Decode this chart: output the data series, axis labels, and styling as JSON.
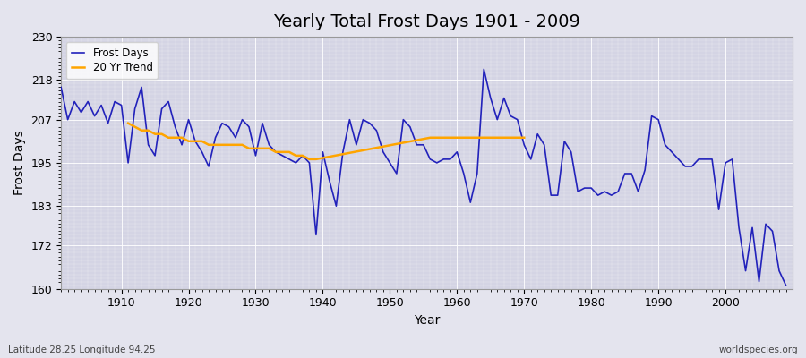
{
  "title": "Yearly Total Frost Days 1901 - 2009",
  "xlabel": "Year",
  "ylabel": "Frost Days",
  "lat_lon_label": "Latitude 28.25 Longitude 94.25",
  "watermark": "worldspecies.org",
  "ylim": [
    160,
    230
  ],
  "yticks": [
    160,
    172,
    183,
    195,
    207,
    218,
    230
  ],
  "xlim": [
    1901,
    2010
  ],
  "frost_days_color": "#2222bb",
  "trend_color": "#FFA500",
  "bg_color": "#e4e4ee",
  "plot_bg_color": "#d4d4e4",
  "years": [
    1901,
    1902,
    1903,
    1904,
    1905,
    1906,
    1907,
    1908,
    1909,
    1910,
    1911,
    1912,
    1913,
    1914,
    1915,
    1916,
    1917,
    1918,
    1919,
    1920,
    1921,
    1922,
    1923,
    1924,
    1925,
    1926,
    1927,
    1928,
    1929,
    1930,
    1931,
    1932,
    1933,
    1934,
    1935,
    1936,
    1937,
    1938,
    1939,
    1940,
    1941,
    1942,
    1943,
    1944,
    1945,
    1946,
    1947,
    1948,
    1949,
    1950,
    1951,
    1952,
    1953,
    1954,
    1955,
    1956,
    1957,
    1958,
    1959,
    1960,
    1961,
    1962,
    1963,
    1964,
    1965,
    1966,
    1967,
    1968,
    1969,
    1970,
    1971,
    1972,
    1973,
    1974,
    1975,
    1976,
    1977,
    1978,
    1979,
    1980,
    1981,
    1982,
    1983,
    1984,
    1985,
    1986,
    1987,
    1988,
    1989,
    1990,
    1991,
    1992,
    1993,
    1994,
    1995,
    1996,
    1997,
    1998,
    1999,
    2000,
    2001,
    2002,
    2003,
    2004,
    2005,
    2006,
    2007,
    2008,
    2009
  ],
  "frost_values": [
    216,
    207,
    212,
    209,
    212,
    208,
    211,
    206,
    212,
    211,
    195,
    210,
    216,
    200,
    197,
    210,
    212,
    205,
    200,
    207,
    201,
    198,
    194,
    202,
    206,
    205,
    202,
    207,
    205,
    197,
    206,
    200,
    198,
    197,
    196,
    195,
    197,
    195,
    175,
    198,
    190,
    183,
    198,
    207,
    200,
    207,
    206,
    204,
    198,
    195,
    192,
    207,
    205,
    200,
    200,
    196,
    195,
    196,
    196,
    198,
    192,
    184,
    192,
    221,
    213,
    207,
    213,
    208,
    207,
    200,
    196,
    203,
    200,
    186,
    186,
    201,
    198,
    187,
    188,
    188,
    186,
    187,
    186,
    187,
    192,
    192,
    187,
    193,
    208,
    207,
    200,
    198,
    196,
    194,
    194,
    196,
    196,
    196,
    182,
    195,
    196,
    177,
    165,
    177,
    162,
    178,
    176,
    165,
    161
  ],
  "trend_years": [
    1911,
    1912,
    1913,
    1914,
    1915,
    1916,
    1917,
    1918,
    1919,
    1920,
    1921,
    1922,
    1923,
    1924,
    1925,
    1926,
    1927,
    1928,
    1929,
    1930,
    1931,
    1932,
    1933,
    1934,
    1935,
    1936,
    1937,
    1938,
    1939,
    1956,
    1957,
    1958,
    1959,
    1960,
    1961,
    1962,
    1963,
    1964,
    1965,
    1966,
    1967,
    1968,
    1969,
    1970
  ],
  "trend_values": [
    206,
    205,
    204,
    204,
    203,
    203,
    202,
    202,
    202,
    201,
    201,
    201,
    200,
    200,
    200,
    200,
    200,
    200,
    199,
    199,
    199,
    199,
    198,
    198,
    198,
    197,
    197,
    196,
    196,
    202,
    202,
    202,
    202,
    202,
    202,
    202,
    202,
    202,
    202,
    202,
    202,
    202,
    202,
    202
  ]
}
